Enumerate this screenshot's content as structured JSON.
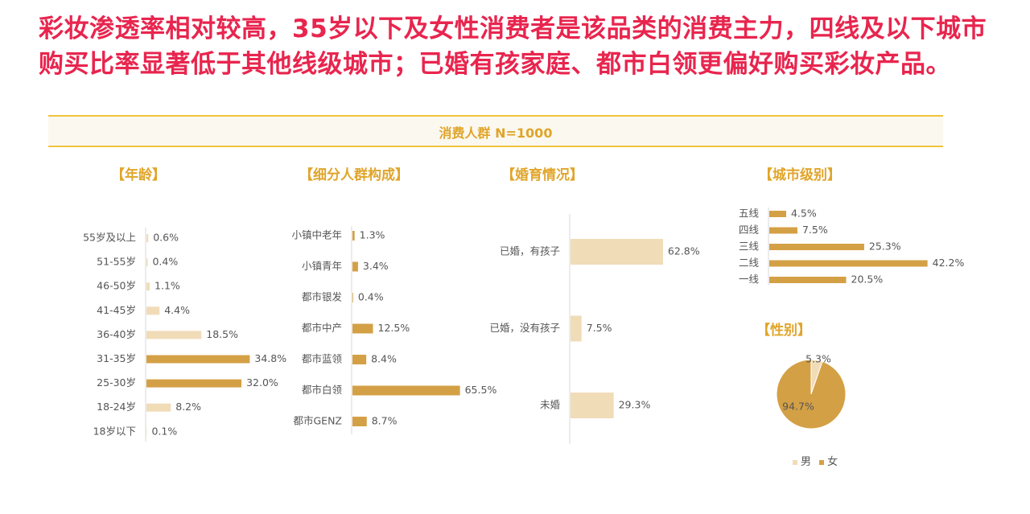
{
  "headline": "彩妆渗透率相对较高，35岁以下及女性消费者是该品类的消费主力，四线及以下城市购买比率显著低于其他线级城市；已婚有孩家庭、都市白领更偏好购买彩妆产品。",
  "band_title": "消费人群 N=1000",
  "colors": {
    "dark": "#d4a045",
    "light": "#f1dcb8",
    "title_red": "#e8254e",
    "gold": "#e0a52a"
  },
  "chart_data": [
    {
      "type": "bar",
      "title": "【年龄】",
      "orientation": "horizontal",
      "categories": [
        "55岁及以上",
        "51-55岁",
        "46-50岁",
        "41-45岁",
        "36-40岁",
        "31-35岁",
        "25-30岁",
        "18-24岁",
        "18岁以下"
      ],
      "values": [
        0.6,
        0.4,
        1.1,
        4.4,
        18.5,
        34.8,
        32.0,
        8.2,
        0.1
      ],
      "labels": [
        "0.6%",
        "0.4%",
        "1.1%",
        "4.4%",
        "18.5%",
        "34.8%",
        "32.0%",
        "8.2%",
        "0.1%"
      ],
      "colors": [
        "light",
        "light",
        "light",
        "light",
        "light",
        "dark",
        "dark",
        "light",
        "light"
      ],
      "unit": "%"
    },
    {
      "type": "bar",
      "title": "【细分人群构成】",
      "orientation": "horizontal",
      "categories": [
        "小镇中老年",
        "小镇青年",
        "都市银发",
        "都市中产",
        "都市蓝领",
        "都市白领",
        "都市GENZ"
      ],
      "values": [
        1.3,
        3.4,
        0.4,
        12.5,
        8.4,
        65.5,
        8.7
      ],
      "labels": [
        "1.3%",
        "3.4%",
        "0.4%",
        "12.5%",
        "8.4%",
        "65.5%",
        "8.7%"
      ],
      "colors": [
        "dark",
        "dark",
        "dark",
        "dark",
        "dark",
        "dark",
        "dark"
      ],
      "unit": "%"
    },
    {
      "type": "bar",
      "title": "【婚育情况】",
      "orientation": "horizontal",
      "categories": [
        "已婚，有孩子",
        "已婚，没有孩子",
        "未婚"
      ],
      "values": [
        62.8,
        7.5,
        29.3
      ],
      "labels": [
        "62.8%",
        "7.5%",
        "29.3%"
      ],
      "colors": [
        "light",
        "light",
        "light"
      ],
      "unit": "%"
    },
    {
      "type": "bar",
      "title": "【城市级别】",
      "orientation": "horizontal",
      "categories": [
        "五线",
        "四线",
        "三线",
        "二线",
        "一线"
      ],
      "values": [
        4.5,
        7.5,
        25.3,
        42.2,
        20.5
      ],
      "labels": [
        "4.5%",
        "7.5%",
        "25.3%",
        "42.2%",
        "20.5%"
      ],
      "colors": [
        "dark",
        "dark",
        "dark",
        "dark",
        "dark"
      ],
      "unit": "%"
    },
    {
      "type": "pie",
      "title": "【性别】",
      "categories": [
        "男",
        "女"
      ],
      "values": [
        5.3,
        94.7
      ],
      "labels": [
        "5.3%",
        "94.7%"
      ],
      "colors": [
        "light",
        "dark"
      ],
      "legend": "bottom"
    }
  ]
}
